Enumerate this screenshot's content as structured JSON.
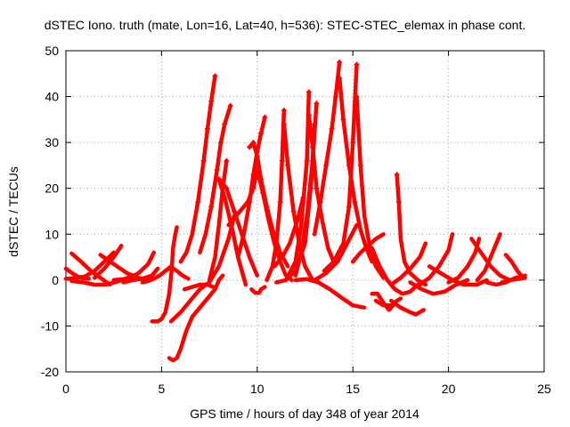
{
  "chart_data": {
    "type": "scatter",
    "title": "dSTEC Iono. truth (mate, Lon=16, Lat=40, h=536): STEC-STEC_elemax in phase cont.",
    "xlabel": "GPS time / hours of day 348 of year 2014",
    "ylabel": "dSTEC  / TECUs",
    "xlim": [
      0,
      25
    ],
    "ylim": [
      -20,
      50
    ],
    "xticks": [
      0,
      5,
      10,
      15,
      20,
      25
    ],
    "yticks": [
      -20,
      -10,
      0,
      10,
      20,
      30,
      40,
      50
    ],
    "grid": true,
    "marker": "plus",
    "color": "#ff0000",
    "series": [
      {
        "x": [
          0.0,
          0.3,
          0.6,
          0.9,
          1.2
        ],
        "y": [
          2.5,
          1.6,
          0.8,
          0.4,
          0.3
        ]
      },
      {
        "x": [
          0.0,
          0.5,
          1.0,
          1.5,
          2.0,
          2.5
        ],
        "y": [
          0.3,
          0.4,
          0.8,
          2.0,
          4.0,
          6.0
        ]
      },
      {
        "x": [
          0.3,
          0.8,
          1.3,
          1.8,
          2.3
        ],
        "y": [
          5.8,
          4.0,
          2.0,
          0.5,
          -1.0
        ]
      },
      {
        "x": [
          0.3,
          0.9,
          1.5,
          2.1,
          2.7,
          3.3
        ],
        "y": [
          -0.2,
          -0.5,
          -1.0,
          -1.0,
          -0.3,
          0.6
        ]
      },
      {
        "x": [
          1.5,
          2.0,
          2.5,
          2.9
        ],
        "y": [
          0.5,
          2.5,
          5.0,
          7.5
        ]
      },
      {
        "x": [
          1.8,
          2.5,
          3.2,
          3.8,
          4.3
        ],
        "y": [
          5.5,
          3.5,
          1.5,
          0.5,
          0.0
        ]
      },
      {
        "x": [
          2.5,
          3.2,
          3.8,
          4.3,
          4.6
        ],
        "y": [
          0.0,
          0.3,
          1.5,
          3.5,
          6.0
        ]
      },
      {
        "x": [
          3.0,
          3.5,
          4.0,
          4.5,
          4.8
        ],
        "y": [
          -0.5,
          0.0,
          0.3,
          1.0,
          2.5
        ]
      },
      {
        "x": [
          4.0,
          4.3,
          4.6,
          4.9,
          5.2,
          5.5
        ],
        "y": [
          -0.5,
          -0.2,
          0.3,
          1.0,
          2.0,
          3.0
        ]
      },
      {
        "x": [
          4.5,
          4.8,
          5.0,
          5.2,
          5.4,
          5.55
        ],
        "y": [
          -9.0,
          -9.0,
          -8.5,
          -7.0,
          -3.0,
          3.0
        ]
      },
      {
        "x": [
          5.55,
          5.6,
          5.7,
          5.8
        ],
        "y": [
          3.5,
          7.0,
          9.5,
          11.5
        ]
      },
      {
        "x": [
          5.2,
          5.5,
          5.8,
          6.1,
          6.4
        ],
        "y": [
          2.0,
          2.8,
          2.0,
          1.0,
          0.3
        ]
      },
      {
        "x": [
          5.4,
          5.6,
          5.8,
          6.0,
          6.3,
          6.6,
          7.0,
          7.4,
          7.8,
          8.0,
          8.2
        ],
        "y": [
          -17.0,
          -17.5,
          -17.0,
          -15.0,
          -11.0,
          -8.0,
          -6.0,
          -4.0,
          -2.0,
          0.0,
          1.0
        ]
      },
      {
        "x": [
          5.5,
          6.0,
          6.5,
          7.0,
          7.5,
          8.0,
          8.5,
          8.8
        ],
        "y": [
          -9.0,
          -7.0,
          -4.5,
          -2.0,
          -0.5,
          3.0,
          9.0,
          14.0
        ]
      },
      {
        "x": [
          6.0,
          6.3,
          6.6,
          6.9,
          7.2,
          7.4,
          7.6,
          7.8
        ],
        "y": [
          4.0,
          6.0,
          10.0,
          17.0,
          26.0,
          33.0,
          39.0,
          44.5
        ]
      },
      {
        "x": [
          6.2,
          6.6,
          7.0,
          7.4,
          7.7
        ],
        "y": [
          -2.0,
          -1.5,
          -1.0,
          -1.0,
          -1.5
        ]
      },
      {
        "x": [
          7.0,
          7.3,
          7.6,
          7.9,
          8.1,
          8.3,
          8.6
        ],
        "y": [
          6.0,
          10.0,
          16.0,
          24.0,
          30.0,
          34.0,
          38.0
        ]
      },
      {
        "x": [
          7.5,
          7.8,
          8.0,
          8.2,
          8.4
        ],
        "y": [
          0.0,
          5.0,
          12.0,
          20.0,
          26.0
        ]
      },
      {
        "x": [
          8.0,
          8.4,
          8.8,
          9.2,
          9.6,
          10.0
        ],
        "y": [
          22.0,
          20.0,
          15.0,
          10.0,
          5.0,
          1.0
        ]
      },
      {
        "x": [
          8.0,
          8.3,
          8.7,
          9.0,
          9.4
        ],
        "y": [
          22.0,
          18.0,
          11.0,
          5.0,
          -1.0
        ]
      },
      {
        "x": [
          8.5,
          9.0,
          9.5,
          9.8,
          10.0
        ],
        "y": [
          12.0,
          14.5,
          17.0,
          20.0,
          24.0
        ]
      },
      {
        "x": [
          9.0,
          9.3,
          9.6,
          9.8,
          10.0,
          10.2,
          10.4
        ],
        "y": [
          5.0,
          10.0,
          17.0,
          23.0,
          28.0,
          32.0,
          35.5
        ]
      },
      {
        "x": [
          9.6,
          9.8,
          10.0,
          10.2,
          10.5,
          10.8,
          11.2,
          11.6
        ],
        "y": [
          29.0,
          30.0,
          27.0,
          22.0,
          16.0,
          11.0,
          6.0,
          3.0
        ]
      },
      {
        "x": [
          9.7,
          9.9,
          10.1,
          10.2,
          10.4
        ],
        "y": [
          -2.0,
          -2.8,
          -2.8,
          -2.0,
          -1.5
        ]
      },
      {
        "x": [
          10.0,
          10.3,
          10.6,
          10.9,
          11.2,
          11.5,
          11.8
        ],
        "y": [
          24.0,
          19.0,
          13.0,
          8.0,
          4.0,
          1.0,
          0.0
        ]
      },
      {
        "x": [
          10.5,
          10.8,
          11.0,
          11.2,
          11.3,
          11.4
        ],
        "y": [
          0.0,
          3.0,
          8.0,
          17.0,
          26.0,
          37.0
        ]
      },
      {
        "x": [
          11.4,
          11.6,
          11.9,
          12.2,
          12.5,
          12.9
        ],
        "y": [
          34.0,
          25.0,
          15.0,
          8.0,
          3.0,
          0.0
        ]
      },
      {
        "x": [
          10.9,
          11.3,
          11.7,
          12.1,
          12.4
        ],
        "y": [
          3.0,
          5.0,
          8.0,
          13.0,
          18.0
        ]
      },
      {
        "x": [
          11.0,
          11.5,
          12.0,
          12.5,
          12.8,
          13.1
        ],
        "y": [
          -0.5,
          0.0,
          2.0,
          8.0,
          20.0,
          38.5
        ]
      },
      {
        "x": [
          11.5,
          12.0,
          12.3,
          12.6,
          12.7
        ],
        "y": [
          0.0,
          4.0,
          12.0,
          26.0,
          41.0
        ]
      },
      {
        "x": [
          12.7,
          12.9,
          13.1,
          13.4,
          13.7,
          14.0
        ],
        "y": [
          36.0,
          29.0,
          20.0,
          13.0,
          7.0,
          4.0
        ]
      },
      {
        "x": [
          12.0,
          12.3,
          12.6,
          12.9,
          13.0
        ],
        "y": [
          1.0,
          6.0,
          14.0,
          26.0,
          34.0
        ]
      },
      {
        "x": [
          12.0,
          12.6,
          13.2,
          13.8,
          14.4,
          15.0,
          15.6
        ],
        "y": [
          0.0,
          0.2,
          -0.5,
          -2.0,
          -3.8,
          -5.5,
          -6.0
        ]
      },
      {
        "x": [
          13.0,
          13.3,
          13.6,
          13.9,
          14.1,
          14.3
        ],
        "y": [
          10.0,
          17.0,
          25.0,
          33.0,
          40.0,
          47.5
        ]
      },
      {
        "x": [
          14.3,
          14.5,
          14.8,
          15.1,
          15.4,
          15.7,
          16.0
        ],
        "y": [
          44.0,
          35.0,
          25.0,
          17.0,
          11.0,
          7.0,
          4.0
        ]
      },
      {
        "x": [
          13.5,
          14.0,
          14.5,
          14.8,
          15.0,
          15.2
        ],
        "y": [
          2.0,
          4.0,
          8.0,
          16.0,
          30.0,
          47.0
        ]
      },
      {
        "x": [
          15.2,
          15.4,
          15.6,
          15.9,
          16.2,
          16.6
        ],
        "y": [
          40.0,
          25.0,
          14.0,
          7.0,
          3.0,
          0.5
        ]
      },
      {
        "x": [
          13.0,
          13.6,
          14.2,
          14.7,
          15.2
        ],
        "y": [
          0.0,
          1.5,
          4.0,
          8.0,
          12.0
        ]
      },
      {
        "x": [
          15.0,
          15.4,
          15.8,
          16.2,
          16.6
        ],
        "y": [
          4.0,
          6.0,
          7.5,
          9.0,
          10.0
        ]
      },
      {
        "x": [
          16.0,
          16.3,
          16.6,
          16.9,
          17.1
        ],
        "y": [
          -3.0,
          -3.0,
          -5.0,
          -6.5,
          -5.5
        ]
      },
      {
        "x": [
          16.2,
          16.6,
          17.0,
          17.3,
          17.5
        ],
        "y": [
          -4.5,
          -5.5,
          -5.5,
          -4.5,
          -4.0
        ]
      },
      {
        "x": [
          17.0,
          17.5,
          18.0,
          18.3,
          18.7
        ],
        "y": [
          -4.5,
          -6.0,
          -7.0,
          -7.5,
          -6.5
        ]
      },
      {
        "x": [
          16.0,
          16.4,
          16.8,
          17.2,
          17.6,
          18.0,
          18.4
        ],
        "y": [
          7.0,
          3.0,
          0.0,
          -2.0,
          -3.0,
          -2.5,
          -1.0
        ]
      },
      {
        "x": [
          17.3,
          17.4,
          17.5,
          17.7,
          18.0,
          18.4,
          18.8
        ],
        "y": [
          23.0,
          17.0,
          9.0,
          4.0,
          1.5,
          0.0,
          -1.0
        ]
      },
      {
        "x": [
          17.0,
          17.5,
          18.0,
          18.5,
          18.8
        ],
        "y": [
          -1.0,
          0.5,
          2.5,
          5.0,
          8.0
        ]
      },
      {
        "x": [
          18.0,
          18.6,
          19.2,
          19.8,
          20.4,
          21.0
        ],
        "y": [
          -0.5,
          -2.0,
          -3.0,
          -2.5,
          -1.0,
          0.0
        ]
      },
      {
        "x": [
          18.5,
          19.0,
          19.5,
          20.0,
          20.2
        ],
        "y": [
          -1.0,
          0.5,
          3.0,
          6.5,
          10.0
        ]
      },
      {
        "x": [
          19.0,
          19.6,
          20.2,
          20.8,
          21.5,
          22.0
        ],
        "y": [
          3.0,
          1.5,
          0.0,
          -1.0,
          -1.0,
          0.0
        ]
      },
      {
        "x": [
          20.0,
          20.5,
          21.0,
          21.4,
          21.6
        ],
        "y": [
          -0.5,
          0.5,
          3.0,
          6.0,
          9.0
        ]
      },
      {
        "x": [
          21.2,
          21.7,
          22.2,
          22.7,
          23.2
        ],
        "y": [
          9.0,
          6.0,
          3.0,
          1.0,
          0.0
        ]
      },
      {
        "x": [
          21.5,
          21.9,
          22.2,
          22.5,
          22.7
        ],
        "y": [
          0.0,
          2.0,
          5.0,
          8.0,
          10.0
        ]
      },
      {
        "x": [
          22.0,
          22.5,
          23.0,
          23.5,
          24.0
        ],
        "y": [
          -0.5,
          -1.0,
          -0.5,
          0.5,
          1.0
        ]
      },
      {
        "x": [
          22.8,
          23.2,
          23.6,
          24.0
        ],
        "y": [
          -0.5,
          0.0,
          0.2,
          0.5
        ]
      },
      {
        "x": [
          23.0,
          23.3,
          23.6,
          23.9
        ],
        "y": [
          5.5,
          4.0,
          2.0,
          0.5
        ]
      }
    ]
  }
}
